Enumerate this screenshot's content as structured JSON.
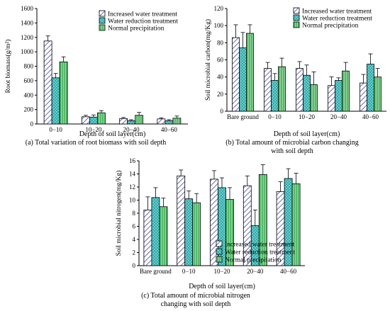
{
  "colors": {
    "increased": "#6a6ab8",
    "reduction": "#5fd6d6",
    "normal": "#2fa84a",
    "axis": "#000000"
  },
  "patterns": {
    "increased": "diagonal-hatch",
    "reduction": "cross-hatch",
    "normal": "vertical-stripe"
  },
  "chart_data": [
    {
      "id": "a",
      "type": "bar",
      "caption": "(a) Total variation of root biomass with soil depth",
      "xlabel": "Depth of soil layer(cm)",
      "ylabel": "Root biomass(g/m²)",
      "ylim": [
        0,
        1600
      ],
      "yticks": [
        0,
        200,
        400,
        600,
        800,
        1000,
        1200,
        1400,
        1600
      ],
      "categories": [
        "0−10",
        "10−20",
        "20−40",
        "40−60"
      ],
      "series": [
        {
          "name": "Increased water treatment",
          "values": [
            1150,
            100,
            75,
            70
          ],
          "errors": [
            70,
            20,
            15,
            15
          ]
        },
        {
          "name": "Water reduction treatment",
          "values": [
            640,
            95,
            45,
            45
          ],
          "errors": [
            60,
            30,
            15,
            15
          ]
        },
        {
          "name": "Normal precipitation",
          "values": [
            860,
            155,
            120,
            80
          ],
          "errors": [
            70,
            30,
            40,
            30
          ]
        }
      ],
      "legend": "top-right",
      "grid": false
    },
    {
      "id": "b",
      "type": "bar",
      "caption_lines": [
        "(b) Total amount of microbial carbon changing",
        "with soil depth"
      ],
      "xlabel": "Depth of soil layer(cm)",
      "ylabel": "Soil microbial carbon(mg/Kg)",
      "ylim": [
        0,
        120
      ],
      "yticks": [
        0,
        20,
        40,
        60,
        80,
        100,
        120
      ],
      "categories": [
        "Bare ground",
        "0−10",
        "10−20",
        "20−40",
        "40−60"
      ],
      "series": [
        {
          "name": "Increased water treatment",
          "values": [
            86,
            50,
            50,
            30,
            33
          ],
          "errors": [
            15,
            7,
            8,
            10,
            10
          ]
        },
        {
          "name": "Water reduction treatment",
          "values": [
            74,
            36,
            42,
            36,
            55
          ],
          "errors": [
            18,
            8,
            12,
            3,
            12
          ]
        },
        {
          "name": "Normal precipitation",
          "values": [
            91,
            52,
            31,
            47,
            40
          ],
          "errors": [
            10,
            10,
            15,
            10,
            10
          ]
        }
      ],
      "legend": "top-right",
      "grid": false
    },
    {
      "id": "c",
      "type": "bar",
      "caption_lines": [
        "(c) Total amount of microbial nitrogen",
        "changing with soil depth"
      ],
      "xlabel": "Depth of soil layer(cm)",
      "ylabel": "Soil microbial nitrogen(mg/Kg)",
      "ylim": [
        0,
        16
      ],
      "yticks": [
        0,
        2,
        4,
        6,
        8,
        10,
        12,
        14,
        16
      ],
      "categories": [
        "Bare ground",
        "0−10",
        "10−20",
        "20−40",
        "40−60"
      ],
      "series": [
        {
          "name": "Increased water treatment",
          "values": [
            8.5,
            13.7,
            13.2,
            12.2,
            11.3
          ],
          "errors": [
            2.0,
            0.9,
            1.3,
            1.5,
            1.5
          ]
        },
        {
          "name": "Water reduction treatment",
          "values": [
            10.4,
            10.2,
            11.9,
            6.1,
            13.3
          ],
          "errors": [
            1.5,
            1.2,
            1.5,
            2.4,
            1.5
          ]
        },
        {
          "name": "Normal precipitation",
          "values": [
            9.0,
            9.6,
            10.1,
            13.9,
            12.5
          ],
          "errors": [
            1.3,
            1.4,
            1.8,
            1.5,
            1.6
          ]
        }
      ],
      "legend": "bottom-right",
      "grid": false
    }
  ]
}
